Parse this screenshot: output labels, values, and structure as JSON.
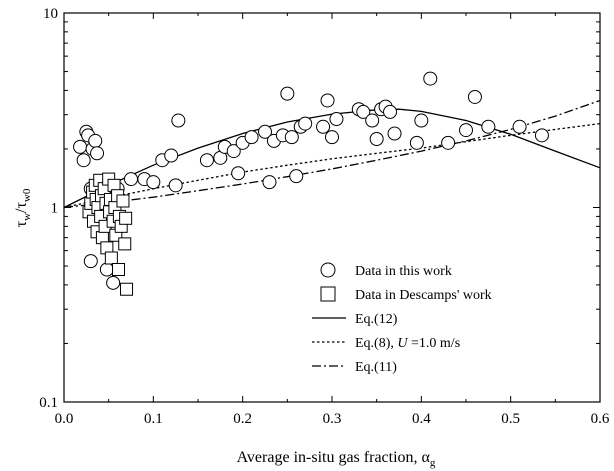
{
  "chart_data": {
    "type": "scatter",
    "title": "",
    "xlabel": "Average in-situ gas fraction, α_g",
    "xlabel_main": "Average in-situ gas fraction, α",
    "xlabel_sub": "g",
    "ylabel": "τ_w/τ_w0",
    "ylabel_parts": [
      "τ",
      "w",
      "/τ",
      "w0"
    ],
    "xlim": [
      0.0,
      0.6
    ],
    "ylim": [
      0.1,
      10
    ],
    "yscale": "log",
    "grid": false,
    "legend_position": "bottom-right",
    "x_ticks": [
      0.0,
      0.1,
      0.2,
      0.3,
      0.4,
      0.5,
      0.6
    ],
    "x_tick_labels": [
      "0.0",
      "0.1",
      "0.2",
      "0.3",
      "0.4",
      "0.5",
      "0.6"
    ],
    "y_ticks": [
      0.1,
      1,
      10
    ],
    "y_tick_labels": [
      "0.1",
      "1",
      "10"
    ],
    "legend": [
      {
        "label": "Data in this work",
        "marker": "circle"
      },
      {
        "label": "Data in Descamps' work",
        "marker": "square"
      },
      {
        "label": "Eq.(12)",
        "line": "solid"
      },
      {
        "label_parts": [
          "Eq.(8), ",
          "U",
          " =1.0 m/s"
        ],
        "line": "dotted"
      },
      {
        "label": "Eq.(11)",
        "line": "dashdot"
      }
    ],
    "series": [
      {
        "name": "Data in this work",
        "marker": "circle",
        "points": [
          [
            0.018,
            2.05
          ],
          [
            0.022,
            1.75
          ],
          [
            0.025,
            2.45
          ],
          [
            0.027,
            2.35
          ],
          [
            0.03,
            1.25
          ],
          [
            0.032,
            2.0
          ],
          [
            0.035,
            2.2
          ],
          [
            0.037,
            1.9
          ],
          [
            0.04,
            1.35
          ],
          [
            0.045,
            1.2
          ],
          [
            0.03,
            0.53
          ],
          [
            0.048,
            0.48
          ],
          [
            0.055,
            0.41
          ],
          [
            0.06,
            1.25
          ],
          [
            0.075,
            1.4
          ],
          [
            0.09,
            1.4
          ],
          [
            0.1,
            1.35
          ],
          [
            0.11,
            1.75
          ],
          [
            0.12,
            1.85
          ],
          [
            0.125,
            1.3
          ],
          [
            0.128,
            2.8
          ],
          [
            0.16,
            1.75
          ],
          [
            0.175,
            1.8
          ],
          [
            0.18,
            2.05
          ],
          [
            0.19,
            1.95
          ],
          [
            0.195,
            1.5
          ],
          [
            0.2,
            2.15
          ],
          [
            0.21,
            2.3
          ],
          [
            0.225,
            2.45
          ],
          [
            0.23,
            1.35
          ],
          [
            0.235,
            2.2
          ],
          [
            0.245,
            2.35
          ],
          [
            0.25,
            3.85
          ],
          [
            0.255,
            2.3
          ],
          [
            0.26,
            1.45
          ],
          [
            0.265,
            2.6
          ],
          [
            0.27,
            2.7
          ],
          [
            0.29,
            2.6
          ],
          [
            0.295,
            3.55
          ],
          [
            0.3,
            2.3
          ],
          [
            0.305,
            2.85
          ],
          [
            0.33,
            3.2
          ],
          [
            0.335,
            3.1
          ],
          [
            0.345,
            2.8
          ],
          [
            0.35,
            2.25
          ],
          [
            0.355,
            3.2
          ],
          [
            0.36,
            3.3
          ],
          [
            0.365,
            3.1
          ],
          [
            0.37,
            2.4
          ],
          [
            0.395,
            2.15
          ],
          [
            0.4,
            2.8
          ],
          [
            0.41,
            4.6
          ],
          [
            0.43,
            2.15
          ],
          [
            0.45,
            2.5
          ],
          [
            0.46,
            3.7
          ],
          [
            0.475,
            2.6
          ],
          [
            0.51,
            2.6
          ],
          [
            0.535,
            2.35
          ]
        ]
      },
      {
        "name": "Data in Descamps' work",
        "marker": "square",
        "points": [
          [
            0.028,
            0.95
          ],
          [
            0.03,
            1.05
          ],
          [
            0.032,
            1.2
          ],
          [
            0.033,
            0.85
          ],
          [
            0.035,
            1.3
          ],
          [
            0.036,
            1.1
          ],
          [
            0.037,
            0.75
          ],
          [
            0.038,
            1.0
          ],
          [
            0.04,
            1.38
          ],
          [
            0.041,
            0.9
          ],
          [
            0.042,
            1.15
          ],
          [
            0.043,
            0.7
          ],
          [
            0.045,
            1.25
          ],
          [
            0.046,
            0.8
          ],
          [
            0.047,
            1.05
          ],
          [
            0.048,
            0.62
          ],
          [
            0.05,
            1.4
          ],
          [
            0.051,
            0.95
          ],
          [
            0.052,
            1.1
          ],
          [
            0.053,
            0.55
          ],
          [
            0.055,
            0.85
          ],
          [
            0.056,
            1.3
          ],
          [
            0.057,
            1.0
          ],
          [
            0.058,
            0.72
          ],
          [
            0.06,
            1.15
          ],
          [
            0.061,
            0.48
          ],
          [
            0.062,
            0.9
          ],
          [
            0.064,
            0.8
          ],
          [
            0.066,
            1.08
          ],
          [
            0.068,
            0.65
          ],
          [
            0.069,
            0.88
          ],
          [
            0.07,
            0.38
          ]
        ]
      },
      {
        "name": "Eq.(12)",
        "line": "solid",
        "x": [
          0.0,
          0.05,
          0.1,
          0.15,
          0.2,
          0.25,
          0.3,
          0.35,
          0.375,
          0.4,
          0.45,
          0.5,
          0.55,
          0.6
        ],
        "y": [
          1.0,
          1.3,
          1.65,
          2.02,
          2.4,
          2.75,
          3.02,
          3.18,
          3.2,
          3.12,
          2.8,
          2.38,
          1.95,
          1.6
        ]
      },
      {
        "name": "Eq.(8), U =1.0 m/s",
        "line": "dotted",
        "x": [
          0.0,
          0.05,
          0.1,
          0.15,
          0.2,
          0.25,
          0.3,
          0.35,
          0.4,
          0.45,
          0.5,
          0.55,
          0.6
        ],
        "y": [
          1.0,
          1.12,
          1.25,
          1.38,
          1.52,
          1.65,
          1.78,
          1.9,
          2.02,
          2.18,
          2.35,
          2.52,
          2.7
        ]
      },
      {
        "name": "Eq.(11)",
        "line": "dashdot",
        "x": [
          0.0,
          0.05,
          0.1,
          0.15,
          0.2,
          0.25,
          0.3,
          0.35,
          0.4,
          0.45,
          0.5,
          0.55,
          0.6
        ],
        "y": [
          1.0,
          1.06,
          1.13,
          1.22,
          1.32,
          1.44,
          1.58,
          1.75,
          1.95,
          2.2,
          2.52,
          2.95,
          3.55
        ]
      }
    ]
  }
}
